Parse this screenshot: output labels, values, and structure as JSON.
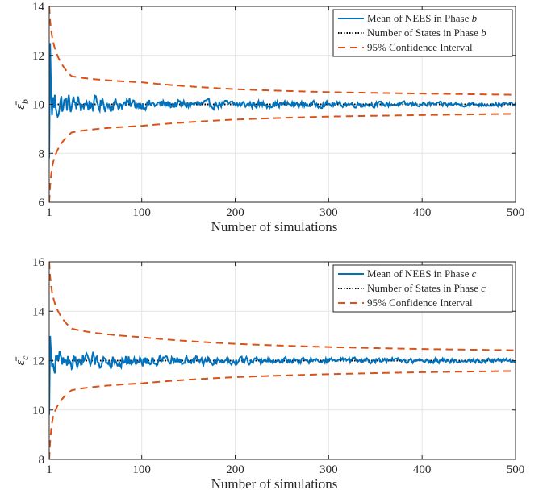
{
  "chart_data": [
    {
      "type": "line",
      "xlabel": "Number of simulations",
      "ylabel": "ε̄",
      "ylabel_sub": "b",
      "xlim": [
        1,
        500
      ],
      "ylim": [
        6,
        14
      ],
      "xticks": [
        1,
        100,
        200,
        300,
        400,
        500
      ],
      "xtick_labels": [
        "1",
        "100",
        "200",
        "300",
        "400",
        "500"
      ],
      "yticks": [
        6,
        8,
        10,
        12,
        14
      ],
      "ytick_labels": [
        "6",
        "8",
        "10",
        "12",
        "14"
      ],
      "grid": true,
      "legend_placement": "top-right",
      "states": 10,
      "series": [
        {
          "name": "Mean of NEES in Phase ",
          "name_italic": "b",
          "style": "solid",
          "color": "#0072BD"
        },
        {
          "name": "Number of States in Phase ",
          "name_italic": "b",
          "style": "dotted",
          "color": "#000000",
          "constant": 10
        },
        {
          "name": "95% Confidence Interval",
          "name_italic": "",
          "style": "dashed",
          "color": "#D95319"
        }
      ],
      "confidence_bound_approx": {
        "x": [
          1,
          5,
          25,
          100,
          200,
          300,
          400,
          500
        ],
        "upper": [
          14.0,
          12.6,
          11.15,
          10.9,
          10.62,
          10.5,
          10.44,
          10.39
        ],
        "lower": [
          6.0,
          7.6,
          8.85,
          9.12,
          9.38,
          9.5,
          9.56,
          9.61
        ]
      },
      "mean_envelope_approx": {
        "x": [
          1,
          2,
          5,
          10,
          20,
          50,
          100,
          200,
          300,
          400,
          500
        ],
        "amplitude": [
          2.2,
          2.5,
          1.3,
          0.9,
          0.6,
          0.45,
          0.3,
          0.22,
          0.17,
          0.14,
          0.12
        ]
      }
    },
    {
      "type": "line",
      "xlabel": "Number of simulations",
      "ylabel": "ε̄",
      "ylabel_sub": "c",
      "xlim": [
        1,
        500
      ],
      "ylim": [
        8,
        16
      ],
      "xticks": [
        1,
        100,
        200,
        300,
        400,
        500
      ],
      "xtick_labels": [
        "1",
        "100",
        "200",
        "300",
        "400",
        "500"
      ],
      "yticks": [
        8,
        10,
        12,
        14,
        16
      ],
      "ytick_labels": [
        "8",
        "10",
        "12",
        "14",
        "16"
      ],
      "grid": true,
      "legend_placement": "top-right",
      "states": 12,
      "series": [
        {
          "name": "Mean of NEES in Phase ",
          "name_italic": "c",
          "style": "solid",
          "color": "#0072BD"
        },
        {
          "name": "Number of States in Phase ",
          "name_italic": "c",
          "style": "dotted",
          "color": "#000000",
          "constant": 12
        },
        {
          "name": "95% Confidence Interval",
          "name_italic": "",
          "style": "dashed",
          "color": "#D95319"
        }
      ],
      "confidence_bound_approx": {
        "x": [
          1,
          5,
          25,
          100,
          200,
          300,
          400,
          500
        ],
        "upper": [
          16.0,
          14.6,
          13.3,
          12.95,
          12.68,
          12.55,
          12.47,
          12.42
        ],
        "lower": [
          8.0,
          9.7,
          10.8,
          11.08,
          11.33,
          11.45,
          11.53,
          11.58
        ]
      },
      "mean_envelope_approx": {
        "x": [
          1,
          2,
          5,
          10,
          20,
          50,
          100,
          200,
          300,
          400,
          500
        ],
        "amplitude": [
          2.2,
          1.0,
          0.8,
          0.8,
          0.6,
          0.45,
          0.3,
          0.22,
          0.17,
          0.14,
          0.12
        ]
      }
    }
  ]
}
